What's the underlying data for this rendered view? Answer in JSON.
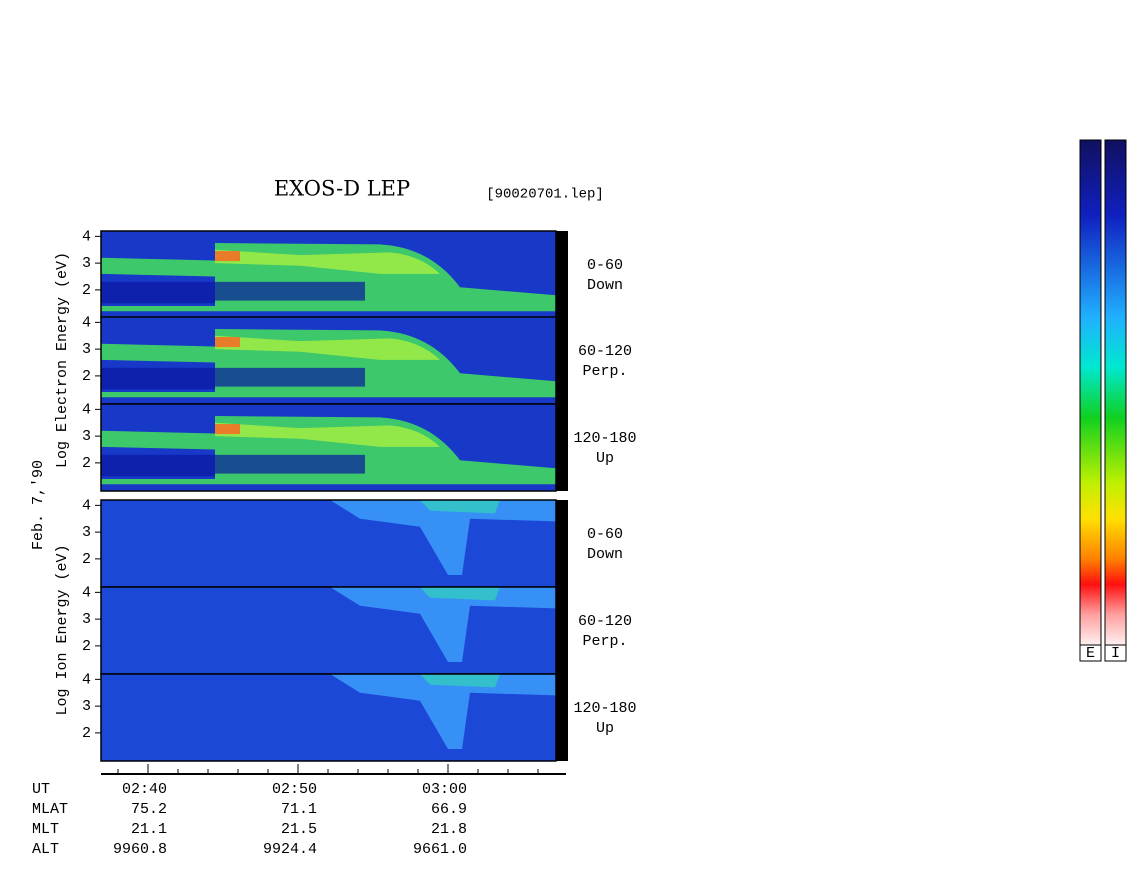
{
  "title": "EXOS-D LEP",
  "file": "[90020701.lep]",
  "date": "Feb. 7,'90",
  "electron_ylabel": "Log  Electron  Energy (eV)",
  "ion_ylabel": "Log  Ion  Energy (eV)",
  "chart_data": [
    {
      "type": "spectrogram",
      "species": "electron",
      "ylim": [
        0.95,
        4.2
      ],
      "yticks": [
        2,
        3,
        4
      ],
      "pitch_angle": "0-60",
      "direction": "Down"
    },
    {
      "type": "spectrogram",
      "species": "electron",
      "ylim": [
        0.95,
        4.2
      ],
      "yticks": [
        2,
        3,
        4
      ],
      "pitch_angle": "60-120",
      "direction": "Perp."
    },
    {
      "type": "spectrogram",
      "species": "electron",
      "ylim": [
        0.95,
        4.2
      ],
      "yticks": [
        2,
        3,
        4
      ],
      "pitch_angle": "120-180",
      "direction": "Up"
    },
    {
      "type": "spectrogram",
      "species": "ion",
      "ylim": [
        0.95,
        4.2
      ],
      "yticks": [
        2,
        3,
        4
      ],
      "pitch_angle": "0-60",
      "direction": "Down"
    },
    {
      "type": "spectrogram",
      "species": "ion",
      "ylim": [
        0.95,
        4.2
      ],
      "yticks": [
        2,
        3,
        4
      ],
      "pitch_angle": "60-120",
      "direction": "Perp."
    },
    {
      "type": "spectrogram",
      "species": "ion",
      "ylim": [
        0.95,
        4.2
      ],
      "yticks": [
        2,
        3,
        4
      ],
      "pitch_angle": "120-180",
      "direction": "Up"
    }
  ],
  "ephemeris": [
    {
      "name": "UT",
      "values": [
        "02:40",
        "02:50",
        "03:00"
      ]
    },
    {
      "name": "MLAT",
      "values": [
        75.2,
        71.1,
        66.9
      ]
    },
    {
      "name": "MLT",
      "values": [
        21.1,
        21.5,
        21.8
      ]
    },
    {
      "name": "ALT",
      "values": [
        9960.8,
        9924.4,
        {
          "value": 9661.0,
          "label": "9661.0"
        }
      ]
    }
  ],
  "colorbar_labels": [
    "E",
    "I"
  ]
}
